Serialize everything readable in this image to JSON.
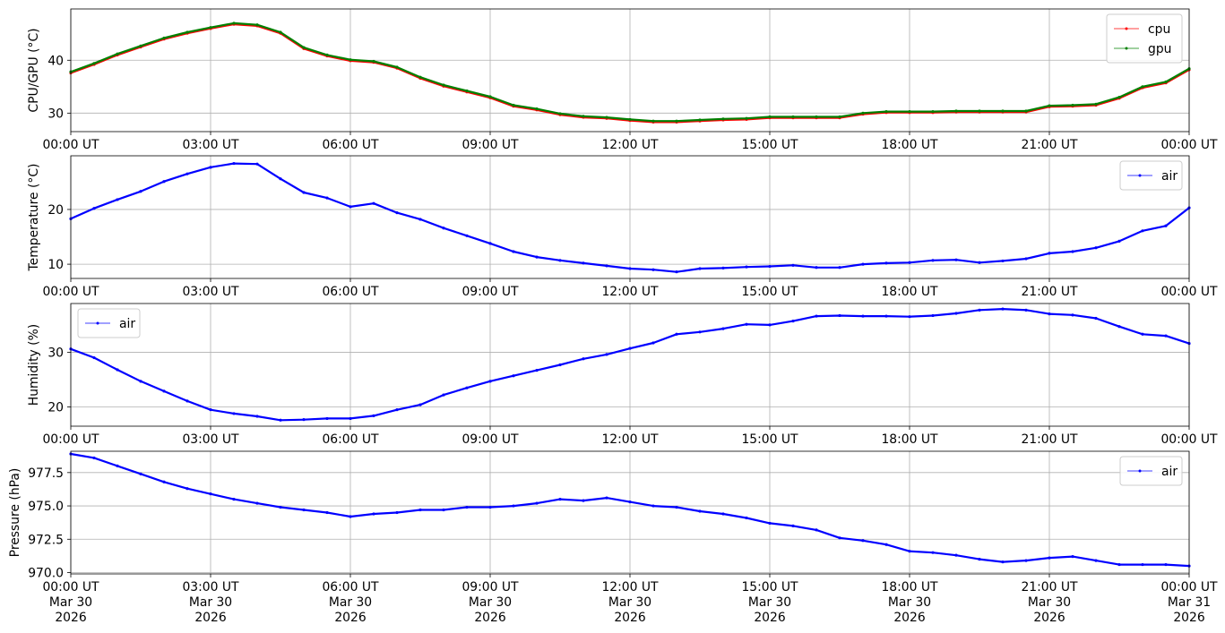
{
  "colors": {
    "cpu": "#ff0000",
    "gpu": "#008000",
    "air": "#0000ff",
    "grid": "#b0b0b0",
    "axes": "#000000"
  },
  "chart_data": [
    {
      "type": "line",
      "ylabel": "CPU/GPU (°C)",
      "xlabel": "",
      "x_ticks": [
        "00:00 UT",
        "03:00 UT",
        "06:00 UT",
        "09:00 UT",
        "12:00 UT",
        "15:00 UT",
        "18:00 UT",
        "21:00 UT",
        "00:00 UT"
      ],
      "x_range_hours": [
        0,
        24
      ],
      "ylim": [
        26.5,
        49.7
      ],
      "y_ticks": [
        30,
        40
      ],
      "grid": true,
      "legend_position": "upper-right",
      "series": [
        {
          "name": "cpu",
          "color": "#ff0000",
          "x_hours": [
            0,
            0.5,
            1,
            1.5,
            2,
            2.5,
            3,
            3.5,
            4,
            4.5,
            5,
            5.5,
            6,
            6.5,
            7,
            7.5,
            8,
            8.5,
            9,
            9.5,
            10,
            10.5,
            11,
            11.5,
            12,
            12.5,
            13,
            13.5,
            14,
            14.5,
            15,
            15.5,
            16,
            16.5,
            17,
            17.5,
            18,
            18.5,
            19,
            19.5,
            20,
            20.5,
            21,
            21.5,
            22,
            22.5,
            23,
            23.5,
            24
          ],
          "values": [
            37.6,
            39.2,
            41,
            42.5,
            44,
            45.1,
            46,
            46.8,
            46.5,
            45.1,
            42.2,
            40.8,
            39.9,
            39.6,
            38.5,
            36.6,
            35.1,
            34,
            32.9,
            31.3,
            30.6,
            29.7,
            29.2,
            29,
            28.6,
            28.3,
            28.3,
            28.5,
            28.7,
            28.8,
            29.1,
            29.1,
            29.1,
            29.1,
            29.8,
            30.1,
            30.1,
            30.1,
            30.2,
            30.2,
            30.2,
            30.2,
            31.2,
            31.3,
            31.5,
            32.8,
            34.8,
            35.7,
            38.2
          ]
        },
        {
          "name": "gpu",
          "color": "#008000",
          "x_hours": [
            0,
            0.5,
            1,
            1.5,
            2,
            2.5,
            3,
            3.5,
            4,
            4.5,
            5,
            5.5,
            6,
            6.5,
            7,
            7.5,
            8,
            8.5,
            9,
            9.5,
            10,
            10.5,
            11,
            11.5,
            12,
            12.5,
            13,
            13.5,
            14,
            14.5,
            15,
            15.5,
            16,
            16.5,
            17,
            17.5,
            18,
            18.5,
            19,
            19.5,
            20,
            20.5,
            21,
            21.5,
            22,
            22.5,
            23,
            23.5,
            24
          ],
          "values": [
            37.8,
            39.4,
            41.2,
            42.7,
            44.2,
            45.3,
            46.2,
            47,
            46.7,
            45.3,
            42.4,
            41,
            40.1,
            39.8,
            38.7,
            36.8,
            35.3,
            34.2,
            33.1,
            31.5,
            30.8,
            29.9,
            29.4,
            29.2,
            28.8,
            28.5,
            28.5,
            28.7,
            28.9,
            29,
            29.3,
            29.3,
            29.3,
            29.3,
            30,
            30.3,
            30.3,
            30.3,
            30.4,
            30.4,
            30.4,
            30.4,
            31.4,
            31.5,
            31.7,
            33,
            35,
            35.9,
            38.4
          ]
        }
      ]
    },
    {
      "type": "line",
      "ylabel": "Temperature (°C)",
      "xlabel": "",
      "x_ticks": [
        "00:00 UT",
        "03:00 UT",
        "06:00 UT",
        "09:00 UT",
        "12:00 UT",
        "15:00 UT",
        "18:00 UT",
        "21:00 UT",
        "00:00 UT"
      ],
      "x_range_hours": [
        0,
        24
      ],
      "ylim": [
        7.4,
        29.8
      ],
      "y_ticks": [
        10,
        20
      ],
      "grid": true,
      "legend_position": "upper-right",
      "series": [
        {
          "name": "air",
          "color": "#0000ff",
          "x_hours": [
            0,
            0.5,
            1,
            1.5,
            2,
            2.5,
            3,
            3.5,
            4,
            4.5,
            5,
            5.5,
            6,
            6.5,
            7,
            7.5,
            8,
            8.5,
            9,
            9.5,
            10,
            10.5,
            11,
            11.5,
            12,
            12.5,
            13,
            13.5,
            14,
            14.5,
            15,
            15.5,
            16,
            16.5,
            17,
            17.5,
            18,
            18.5,
            19,
            19.5,
            20,
            20.5,
            21,
            21.5,
            22,
            22.5,
            23,
            23.5,
            24
          ],
          "values": [
            18.3,
            20.2,
            21.8,
            23.3,
            25.1,
            26.5,
            27.7,
            28.4,
            28.3,
            25.6,
            23.1,
            22.1,
            20.5,
            21.1,
            19.4,
            18.2,
            16.6,
            15.2,
            13.8,
            12.3,
            11.3,
            10.7,
            10.2,
            9.7,
            9.2,
            9,
            8.6,
            9.2,
            9.3,
            9.5,
            9.6,
            9.8,
            9.4,
            9.4,
            10,
            10.2,
            10.3,
            10.7,
            10.8,
            10.3,
            10.6,
            11,
            12,
            12.3,
            13,
            14.2,
            16.1,
            17,
            20.3
          ]
        }
      ]
    },
    {
      "type": "line",
      "ylabel": "Humidity (%)",
      "xlabel": "",
      "x_ticks": [
        "00:00 UT",
        "03:00 UT",
        "06:00 UT",
        "09:00 UT",
        "12:00 UT",
        "15:00 UT",
        "18:00 UT",
        "21:00 UT",
        "00:00 UT"
      ],
      "x_range_hours": [
        0,
        24
      ],
      "ylim": [
        16.5,
        38.9
      ],
      "y_ticks": [
        20,
        30
      ],
      "grid": true,
      "legend_position": "upper-left",
      "series": [
        {
          "name": "air",
          "color": "#0000ff",
          "x_hours": [
            0,
            0.5,
            1,
            1.5,
            2,
            2.5,
            3,
            3.5,
            4,
            4.5,
            5,
            5.5,
            6,
            6.5,
            7,
            7.5,
            8,
            8.5,
            9,
            9.5,
            10,
            10.5,
            11,
            11.5,
            12,
            12.5,
            13,
            13.5,
            14,
            14.5,
            15,
            15.5,
            16,
            16.5,
            17,
            17.5,
            18,
            18.5,
            19,
            19.5,
            20,
            20.5,
            21,
            21.5,
            22,
            22.5,
            23,
            23.5,
            24
          ],
          "values": [
            30.6,
            29,
            26.8,
            24.7,
            22.9,
            21.1,
            19.5,
            18.8,
            18.3,
            17.6,
            17.7,
            17.9,
            17.9,
            18.4,
            19.5,
            20.4,
            22.2,
            23.5,
            24.7,
            25.7,
            26.7,
            27.7,
            28.8,
            29.6,
            30.7,
            31.7,
            33.3,
            33.7,
            34.3,
            35.1,
            35,
            35.7,
            36.6,
            36.7,
            36.6,
            36.6,
            36.5,
            36.7,
            37.1,
            37.7,
            37.9,
            37.7,
            37,
            36.8,
            36.2,
            34.7,
            33.3,
            33,
            31.6
          ]
        }
      ]
    },
    {
      "type": "line",
      "ylabel": "Pressure (hPa)",
      "xlabel": "",
      "x_ticks": [
        "00:00 UT",
        "03:00 UT",
        "06:00 UT",
        "09:00 UT",
        "12:00 UT",
        "15:00 UT",
        "18:00 UT",
        "21:00 UT",
        "00:00 UT"
      ],
      "x_ticks_line2": [
        "Mar 30",
        "Mar 30",
        "Mar 30",
        "Mar 30",
        "Mar 30",
        "Mar 30",
        "Mar 30",
        "Mar 30",
        "Mar 31"
      ],
      "x_ticks_line3": [
        "2026",
        "2026",
        "2026",
        "2026",
        "2026",
        "2026",
        "2026",
        "2026",
        "2026"
      ],
      "x_range_hours": [
        0,
        24
      ],
      "ylim": [
        969.9,
        979.1
      ],
      "y_ticks": [
        970.0,
        972.5,
        975.0,
        977.5
      ],
      "y_tick_labels": [
        "970.0",
        "972.5",
        "975.0",
        "977.5"
      ],
      "grid": true,
      "legend_position": "upper-right",
      "series": [
        {
          "name": "air",
          "color": "#0000ff",
          "x_hours": [
            0,
            0.5,
            1,
            1.5,
            2,
            2.5,
            3,
            3.5,
            4,
            4.5,
            5,
            5.5,
            6,
            6.5,
            7,
            7.5,
            8,
            8.5,
            9,
            9.5,
            10,
            10.5,
            11,
            11.5,
            12,
            12.5,
            13,
            13.5,
            14,
            14.5,
            15,
            15.5,
            16,
            16.5,
            17,
            17.5,
            18,
            18.5,
            19,
            19.5,
            20,
            20.5,
            21,
            21.5,
            22,
            22.5,
            23,
            23.5,
            24
          ],
          "values": [
            978.9,
            978.6,
            978,
            977.4,
            976.8,
            976.3,
            975.9,
            975.5,
            975.2,
            974.9,
            974.7,
            974.5,
            974.2,
            974.4,
            974.5,
            974.7,
            974.7,
            974.9,
            974.9,
            975,
            975.2,
            975.5,
            975.4,
            975.6,
            975.3,
            975,
            974.9,
            974.6,
            974.4,
            974.1,
            973.7,
            973.5,
            973.2,
            972.6,
            972.4,
            972.1,
            971.6,
            971.5,
            971.3,
            971,
            970.8,
            970.9,
            971.1,
            971.2,
            970.9,
            970.6,
            970.6,
            970.6,
            970.5
          ]
        }
      ]
    }
  ]
}
